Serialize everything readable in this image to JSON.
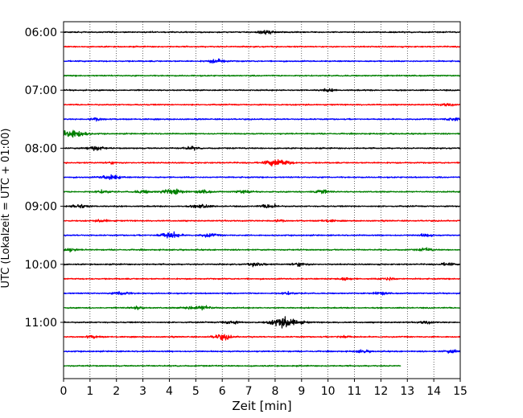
{
  "chart_data": {
    "type": "line",
    "title": "",
    "xlabel": "Zeit  [min]",
    "ylabel": "UTC (Lokalzeit = UTC + 01:00)",
    "xlim": [
      0,
      15
    ],
    "x_ticks": [
      "0",
      "1",
      "2",
      "3",
      "4",
      "5",
      "6",
      "7",
      "8",
      "9",
      "10",
      "11",
      "12",
      "13",
      "14",
      "15"
    ],
    "y_tick_labels": [
      "06:00",
      "07:00",
      "08:00",
      "09:00",
      "10:00",
      "11:00"
    ],
    "trace_interval_min": 15,
    "trace_colors": [
      "#000000",
      "#ff0000",
      "#0000ff",
      "#008000"
    ],
    "grid": "vertical dotted",
    "legend": "none",
    "traces": [
      {
        "start": "06:00",
        "color": "#000000",
        "end_min": 15,
        "events": [
          [
            7.7,
            0.35
          ]
        ]
      },
      {
        "start": "06:15",
        "color": "#ff0000",
        "end_min": 15,
        "events": []
      },
      {
        "start": "06:30",
        "color": "#0000ff",
        "end_min": 15,
        "events": [
          [
            5.8,
            0.4
          ]
        ]
      },
      {
        "start": "06:45",
        "color": "#008000",
        "end_min": 15,
        "events": []
      },
      {
        "start": "07:00",
        "color": "#000000",
        "end_min": 15,
        "events": [
          [
            10.0,
            0.25
          ]
        ]
      },
      {
        "start": "07:15",
        "color": "#ff0000",
        "end_min": 15,
        "events": [
          [
            14.5,
            0.25
          ]
        ]
      },
      {
        "start": "07:30",
        "color": "#0000ff",
        "end_min": 15,
        "events": [
          [
            1.2,
            0.3
          ],
          [
            14.7,
            0.3
          ]
        ]
      },
      {
        "start": "07:45",
        "color": "#008000",
        "end_min": 15,
        "events": [
          [
            0.3,
            0.9
          ]
        ]
      },
      {
        "start": "08:00",
        "color": "#000000",
        "end_min": 15,
        "events": [
          [
            1.2,
            0.45
          ],
          [
            4.8,
            0.3
          ]
        ]
      },
      {
        "start": "08:15",
        "color": "#ff0000",
        "end_min": 15,
        "events": [
          [
            8.1,
            0.75
          ],
          [
            1.8,
            0.2
          ]
        ]
      },
      {
        "start": "08:30",
        "color": "#0000ff",
        "end_min": 15,
        "events": [
          [
            1.8,
            0.5
          ]
        ]
      },
      {
        "start": "08:45",
        "color": "#008000",
        "end_min": 15,
        "events": [
          [
            1.5,
            0.3
          ],
          [
            3.0,
            0.3
          ],
          [
            4.1,
            0.6
          ],
          [
            5.3,
            0.3
          ],
          [
            6.8,
            0.3
          ],
          [
            9.7,
            0.4
          ]
        ]
      },
      {
        "start": "09:00",
        "color": "#000000",
        "end_min": 15,
        "events": [
          [
            0.6,
            0.4
          ],
          [
            5.2,
            0.4
          ],
          [
            7.8,
            0.4
          ]
        ]
      },
      {
        "start": "09:15",
        "color": "#ff0000",
        "end_min": 15,
        "events": [
          [
            1.5,
            0.25
          ],
          [
            8.1,
            0.25
          ],
          [
            10.0,
            0.25
          ]
        ]
      },
      {
        "start": "09:30",
        "color": "#0000ff",
        "end_min": 15,
        "events": [
          [
            4.0,
            0.6
          ],
          [
            5.5,
            0.35
          ],
          [
            13.7,
            0.25
          ]
        ]
      },
      {
        "start": "09:45",
        "color": "#008000",
        "end_min": 15,
        "events": [
          [
            0.2,
            0.3
          ],
          [
            13.7,
            0.3
          ]
        ]
      },
      {
        "start": "10:00",
        "color": "#000000",
        "end_min": 15,
        "events": [
          [
            7.3,
            0.35
          ],
          [
            8.9,
            0.35
          ],
          [
            14.5,
            0.25
          ]
        ]
      },
      {
        "start": "10:15",
        "color": "#ff0000",
        "end_min": 15,
        "events": [
          [
            10.6,
            0.3
          ],
          [
            12.3,
            0.3
          ]
        ]
      },
      {
        "start": "10:30",
        "color": "#0000ff",
        "end_min": 15,
        "events": [
          [
            2.2,
            0.35
          ],
          [
            8.5,
            0.25
          ],
          [
            12.0,
            0.25
          ]
        ]
      },
      {
        "start": "10:45",
        "color": "#008000",
        "end_min": 15,
        "events": [
          [
            2.8,
            0.3
          ],
          [
            5.3,
            0.4
          ],
          [
            4.7,
            0.25
          ]
        ]
      },
      {
        "start": "11:00",
        "color": "#000000",
        "end_min": 15,
        "events": [
          [
            6.3,
            0.35
          ],
          [
            8.4,
            1.0
          ],
          [
            13.7,
            0.25
          ]
        ]
      },
      {
        "start": "11:15",
        "color": "#ff0000",
        "end_min": 15,
        "events": [
          [
            6.0,
            0.5
          ],
          [
            1.1,
            0.25
          ],
          [
            10.6,
            0.25
          ]
        ]
      },
      {
        "start": "11:30",
        "color": "#0000ff",
        "end_min": 15,
        "events": [
          [
            11.3,
            0.25
          ],
          [
            14.7,
            0.3
          ]
        ]
      },
      {
        "start": "11:45",
        "color": "#008000",
        "end_min": 12.75,
        "events": []
      }
    ]
  }
}
